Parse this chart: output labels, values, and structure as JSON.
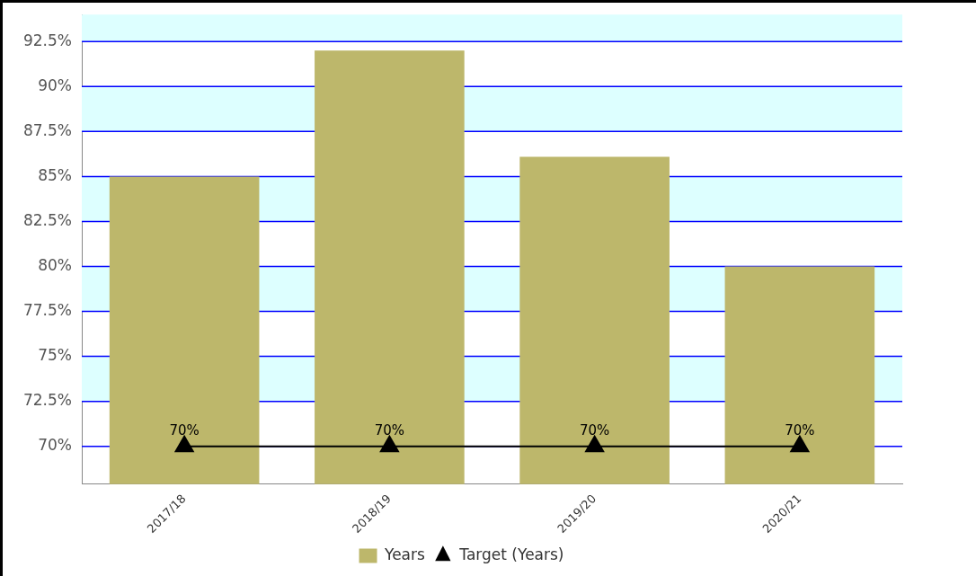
{
  "chart_data": {
    "type": "bar",
    "categories": [
      "2017/18",
      "2018/19",
      "2019/20",
      "2020/21"
    ],
    "series": [
      {
        "name": "Years",
        "color": "#bdb76b",
        "values": [
          85,
          92,
          86.1,
          80
        ]
      },
      {
        "name": "Target (Years)",
        "type": "line",
        "color": "#000000",
        "values": [
          70,
          70,
          70,
          70
        ],
        "marker": "triangle",
        "value_labels": [
          "70%",
          "70%",
          "70%",
          "70%"
        ]
      }
    ],
    "ylim": [
      67.9,
      94
    ],
    "yticks": [
      {
        "value": 70,
        "label": "70%"
      },
      {
        "value": 72.5,
        "label": "72.5%"
      },
      {
        "value": 75,
        "label": "75%"
      },
      {
        "value": 77.5,
        "label": "77.5%"
      },
      {
        "value": 80,
        "label": "80%"
      },
      {
        "value": 82.5,
        "label": "82.5%"
      },
      {
        "value": 85,
        "label": "85%"
      },
      {
        "value": 87.5,
        "label": "87.5%"
      },
      {
        "value": 90,
        "label": "90%"
      },
      {
        "value": 92.5,
        "label": "92.5%"
      }
    ],
    "bands": [
      {
        "axis": "y",
        "from": 72.5,
        "to": 75,
        "color": "#ddffff"
      },
      {
        "axis": "y",
        "from": 77.5,
        "to": 80,
        "color": "#ddffff"
      },
      {
        "axis": "y",
        "from": 82.5,
        "to": 85,
        "color": "#ddffff"
      },
      {
        "axis": "y",
        "from": 87.5,
        "to": 90,
        "color": "#ddffff"
      },
      {
        "axis": "y",
        "from": 92.5,
        "to": 94,
        "color": "#ddffff"
      }
    ],
    "grid": "y",
    "legend": "bottom"
  }
}
